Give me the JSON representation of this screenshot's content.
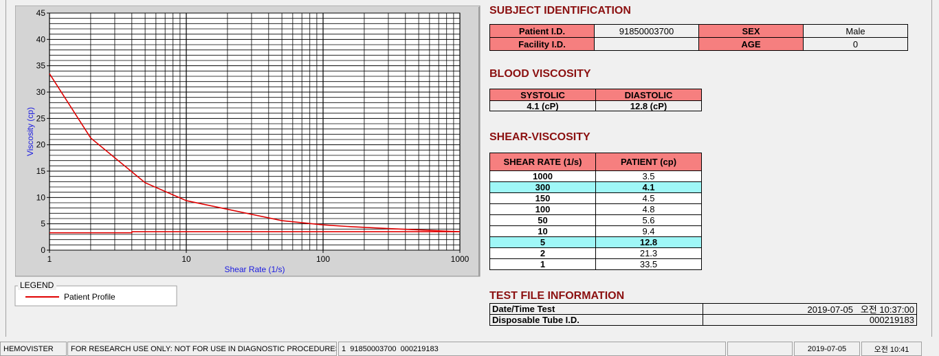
{
  "chart_data": {
    "type": "line",
    "x_label": "Shear Rate (1/s)",
    "y_label": "Viscosity (cp)",
    "xscale": "log",
    "xlim": [
      1,
      1000
    ],
    "xticks": [
      1,
      10,
      100,
      1000
    ],
    "ylim": [
      0,
      45
    ],
    "yticks": [
      0,
      5,
      10,
      15,
      20,
      25,
      30,
      35,
      40,
      45
    ],
    "grid": true,
    "minor_grid": true,
    "legend_title": "LEGEND",
    "series": [
      {
        "name": "Patient Profile",
        "color": "#e00000",
        "x": [
          1,
          2,
          5,
          10,
          50,
          100,
          150,
          300,
          1000
        ],
        "values": [
          33.5,
          21.3,
          12.8,
          9.4,
          5.6,
          4.8,
          4.5,
          4.1,
          3.5
        ]
      },
      {
        "color": "#e00000",
        "x": [
          1,
          4,
          4,
          1000
        ],
        "values": [
          3.3,
          3.3,
          3.5,
          3.5
        ]
      }
    ]
  },
  "subject_identification": {
    "title": "SUBJECT IDENTIFICATION",
    "rows": [
      [
        "Patient I.D.",
        "91850003700",
        "SEX",
        "Male"
      ],
      [
        "Facility I.D.",
        null,
        "AGE",
        "0"
      ]
    ]
  },
  "blood_viscosity": {
    "title": "BLOOD VISCOSITY",
    "headers": [
      "SYSTOLIC",
      "DIASTOLIC"
    ],
    "values": [
      "4.1 (cP)",
      "12.8 (cP)"
    ]
  },
  "shear_viscosity": {
    "title": "SHEAR-VISCOSITY",
    "headers": [
      "SHEAR RATE (1/s)",
      "PATIENT (cp)"
    ],
    "rows": [
      [
        "1000",
        "3.5"
      ],
      [
        "300",
        "4.1"
      ],
      [
        "150",
        "4.5"
      ],
      [
        "100",
        "4.8"
      ],
      [
        "50",
        "5.6"
      ],
      [
        "10",
        "9.4"
      ],
      [
        "5",
        "12.8"
      ],
      [
        "2",
        "21.3"
      ],
      [
        "1",
        "33.5"
      ]
    ],
    "highlight_rows": [
      1,
      6
    ]
  },
  "test_file": {
    "title": "TEST FILE INFORMATION",
    "rows": [
      [
        "Date/Time Test",
        "2019-07-05   오전 10:37:00"
      ],
      [
        "Disposable Tube I.D.",
        "000219183"
      ]
    ]
  },
  "status_bar": [
    "HEMOVISTER",
    "FOR RESEARCH USE ONLY: NOT FOR USE IN DIAGNOSTIC PROCEDURES",
    "1  91850003700  000219183",
    "2019-07-05",
    "오전 10:41"
  ]
}
